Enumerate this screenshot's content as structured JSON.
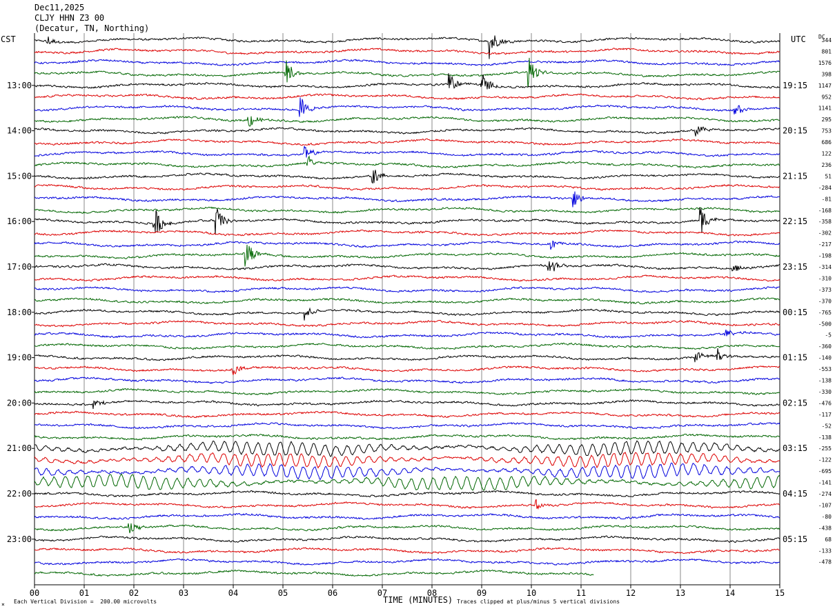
{
  "header": {
    "date": "Dec11,2025",
    "station": "CLJY HHN Z3 00",
    "location": "(Decatur, TN, Northing)"
  },
  "labels": {
    "left_tz": "CST",
    "right_tz": "UTC",
    "dc_label": "DC",
    "xlabel": "TIME (MINUTES)",
    "footer_left": "Each Vertical Division =  200.00 microvolts",
    "footer_right": "Traces clipped at plus/minus 5 vertical divisions",
    "corner_mark": "×"
  },
  "colors": {
    "trace_cycle": [
      "#000000",
      "#dd0000",
      "#0000dd",
      "#006600"
    ],
    "grid": "#888888"
  },
  "chart_data": {
    "type": "line",
    "title": "",
    "x_ticks": [
      "00",
      "01",
      "02",
      "03",
      "04",
      "05",
      "06",
      "07",
      "08",
      "09",
      "10",
      "11",
      "12",
      "13",
      "14",
      "15"
    ],
    "xlim": [
      0,
      15
    ],
    "trace_count": 48,
    "traces_per_hour": 4,
    "left_hour_labels": [
      "13:00",
      "14:00",
      "15:00",
      "16:00",
      "17:00",
      "18:00",
      "19:00",
      "20:00",
      "21:00",
      "22:00",
      "23:00"
    ],
    "right_hour_labels": [
      "19:15",
      "20:15",
      "21:15",
      "22:15",
      "23:15",
      "00:15",
      "01:15",
      "02:15",
      "03:15",
      "04:15",
      "05:15"
    ],
    "dc_offsets": [
      "344",
      "801",
      "1576",
      "398",
      "1147",
      "952",
      "1141",
      "295",
      "753",
      "686",
      "122",
      "236",
      "51",
      "-284",
      "-81",
      "-168",
      "-358",
      "-302",
      "-217",
      "-198",
      "-314",
      "-310",
      "-373",
      "-370",
      "-765",
      "-500",
      "-5",
      "-360",
      "-140",
      "-553",
      "-138",
      "-330",
      "-476",
      "-117",
      "-52",
      "-138",
      "-255",
      "-122",
      "-695",
      "-141",
      "-274",
      "-107",
      "-80",
      "-438",
      "68",
      "-133",
      "-478"
    ],
    "events": [
      {
        "trace": 0,
        "minute": 0.25,
        "amp": 10
      },
      {
        "trace": 0,
        "minute": 9.15,
        "amp": 28
      },
      {
        "trace": 3,
        "minute": 5.05,
        "amp": 22
      },
      {
        "trace": 3,
        "minute": 9.95,
        "amp": 26
      },
      {
        "trace": 4,
        "minute": 8.35,
        "amp": 16
      },
      {
        "trace": 4,
        "minute": 9.0,
        "amp": 20
      },
      {
        "trace": 6,
        "minute": 5.35,
        "amp": 22
      },
      {
        "trace": 6,
        "minute": 14.1,
        "amp": 12
      },
      {
        "trace": 7,
        "minute": 4.3,
        "amp": 14
      },
      {
        "trace": 8,
        "minute": 13.3,
        "amp": 12
      },
      {
        "trace": 10,
        "minute": 5.45,
        "amp": 12
      },
      {
        "trace": 11,
        "minute": 5.5,
        "amp": 14
      },
      {
        "trace": 12,
        "minute": 6.8,
        "amp": 16
      },
      {
        "trace": 14,
        "minute": 10.85,
        "amp": 14
      },
      {
        "trace": 16,
        "minute": 2.4,
        "amp": 28
      },
      {
        "trace": 16,
        "minute": 3.65,
        "amp": 24
      },
      {
        "trace": 16,
        "minute": 13.4,
        "amp": 24
      },
      {
        "trace": 18,
        "minute": 10.4,
        "amp": 10
      },
      {
        "trace": 19,
        "minute": 4.25,
        "amp": 26
      },
      {
        "trace": 20,
        "minute": 10.35,
        "amp": 18
      },
      {
        "trace": 20,
        "minute": 14.05,
        "amp": 9
      },
      {
        "trace": 24,
        "minute": 5.45,
        "amp": 14
      },
      {
        "trace": 26,
        "minute": 13.9,
        "amp": 8
      },
      {
        "trace": 28,
        "minute": 13.3,
        "amp": 10
      },
      {
        "trace": 28,
        "minute": 13.75,
        "amp": 10
      },
      {
        "trace": 29,
        "minute": 4.0,
        "amp": 10
      },
      {
        "trace": 32,
        "minute": 1.2,
        "amp": 8
      },
      {
        "trace": 41,
        "minute": 10.1,
        "amp": 8
      },
      {
        "trace": 43,
        "minute": 1.9,
        "amp": 12
      }
    ],
    "microseism_traces": [
      36,
      37,
      38,
      39
    ]
  }
}
